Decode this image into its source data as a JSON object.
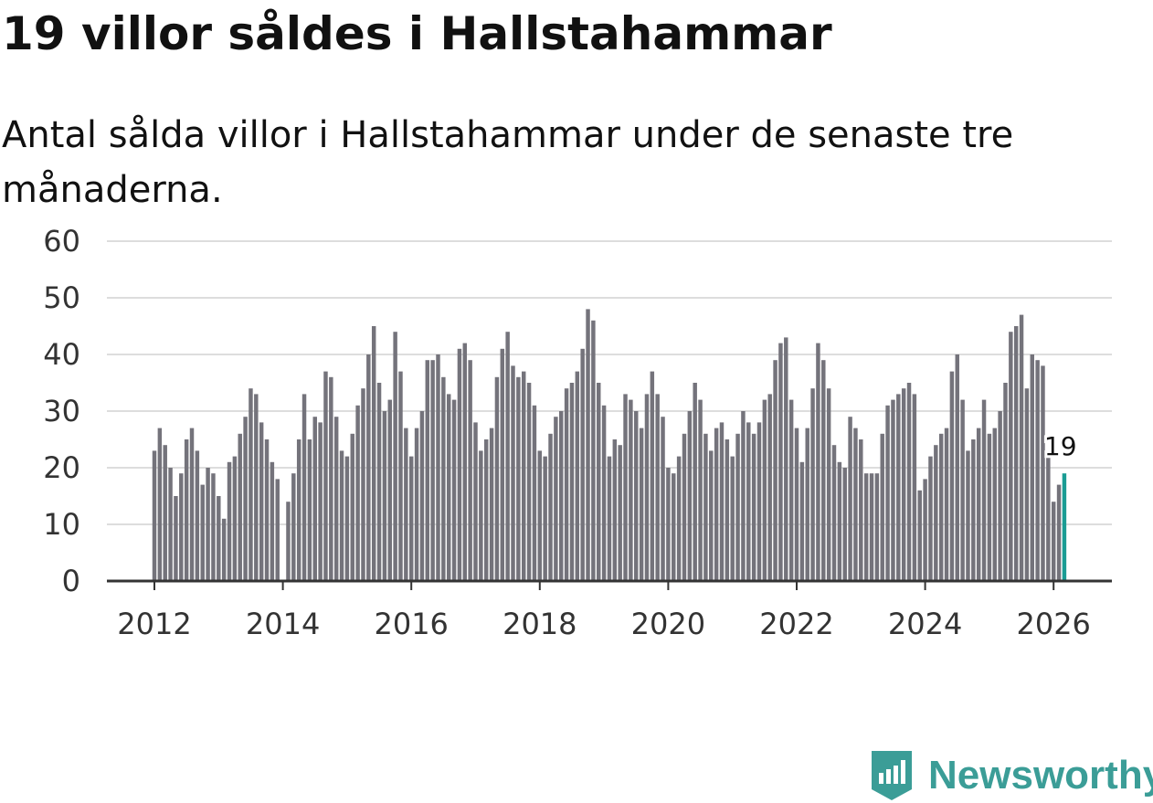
{
  "title": "19 villor såldes i Hallstahammar",
  "subtitle": "Antal sålda villor i Hallstahammar under de senaste tre månaderna.",
  "brand": {
    "name": "Newsworthy",
    "color": "#3b9d97",
    "icon": "newsworthy-logo-icon"
  },
  "colors": {
    "bar": "#74737b",
    "highlight": "#1a9c94",
    "grid": "#dddddd",
    "axis": "#333333"
  },
  "chart_data": {
    "type": "bar",
    "title": "19 villor såldes i Hallstahammar",
    "xlabel": "",
    "ylabel": "",
    "ylim": [
      0,
      60
    ],
    "yticks": [
      0,
      10,
      20,
      30,
      40,
      50,
      60
    ],
    "xticks": [
      "2012",
      "2014",
      "2016",
      "2018",
      "2020",
      "2022",
      "2024",
      "2026"
    ],
    "x_start": "2012-01",
    "x_end": "2026-03",
    "grid": true,
    "annotation": {
      "label": "19",
      "index": 170
    },
    "values": [
      23,
      27,
      24,
      20,
      15,
      19,
      25,
      27,
      23,
      17,
      20,
      19,
      15,
      11,
      21,
      22,
      26,
      29,
      34,
      33,
      28,
      25,
      21,
      18,
      0,
      14,
      19,
      25,
      33,
      25,
      29,
      28,
      37,
      36,
      29,
      23,
      22,
      26,
      31,
      34,
      40,
      45,
      35,
      30,
      32,
      44,
      37,
      27,
      22,
      27,
      30,
      39,
      39,
      40,
      36,
      33,
      32,
      41,
      42,
      39,
      28,
      23,
      25,
      27,
      36,
      41,
      44,
      38,
      36,
      37,
      35,
      31,
      23,
      22,
      26,
      29,
      30,
      34,
      35,
      37,
      41,
      48,
      46,
      35,
      31,
      22,
      25,
      24,
      33,
      32,
      30,
      27,
      33,
      37,
      33,
      29,
      20,
      19,
      22,
      26,
      30,
      35,
      32,
      26,
      23,
      27,
      28,
      25,
      22,
      26,
      30,
      28,
      26,
      28,
      32,
      33,
      39,
      42,
      43,
      32,
      27,
      21,
      27,
      34,
      42,
      39,
      34,
      24,
      21,
      20,
      29,
      27,
      25,
      19,
      19,
      19,
      26,
      31,
      32,
      33,
      34,
      35,
      33,
      16,
      18,
      22,
      24,
      26,
      27,
      37,
      40,
      32,
      23,
      25,
      27,
      32,
      26,
      27,
      30,
      35,
      44,
      45,
      47,
      34,
      40,
      39,
      38,
      23,
      14,
      17,
      19
    ]
  }
}
